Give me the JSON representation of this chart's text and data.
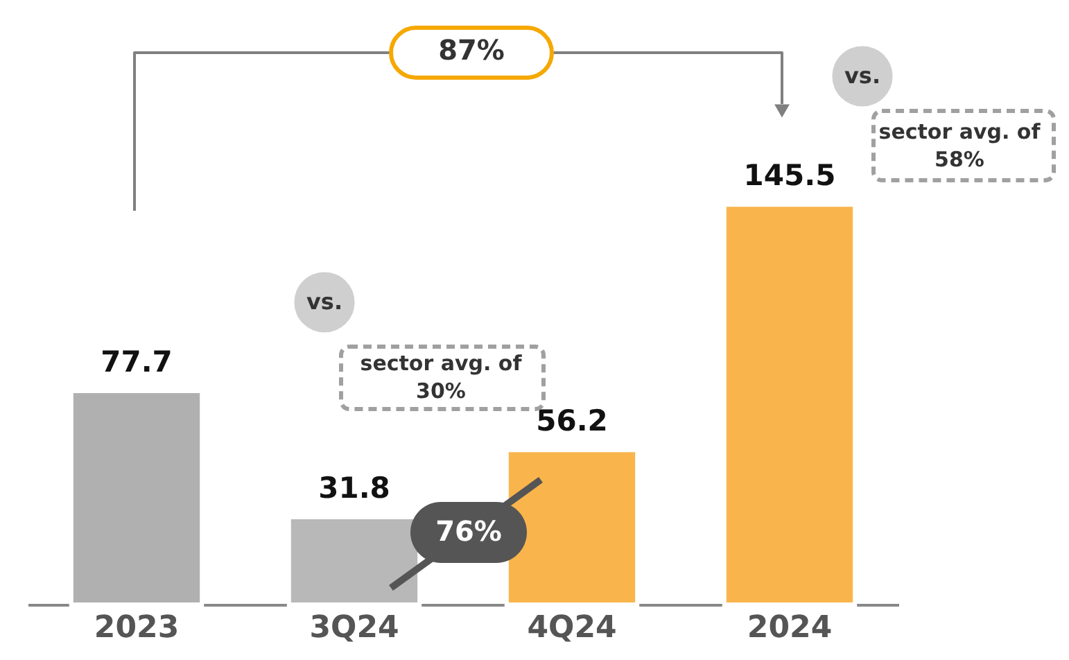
{
  "chart_data": {
    "type": "bar",
    "categories": [
      "2023",
      "3Q24",
      "4Q24",
      "2024"
    ],
    "values": [
      77.7,
      31.8,
      56.2,
      145.5
    ],
    "colors": [
      "#b0b0b0",
      "#b8b8b8",
      "#f9b54c",
      "#f9b54c"
    ],
    "ylim": [
      0,
      220
    ],
    "data_labels": true,
    "annotations": [
      "87%",
      "vs.",
      "sector avg. of\n58%",
      "vs.",
      "sector avg. of\n30%",
      "76%"
    ]
  }
}
